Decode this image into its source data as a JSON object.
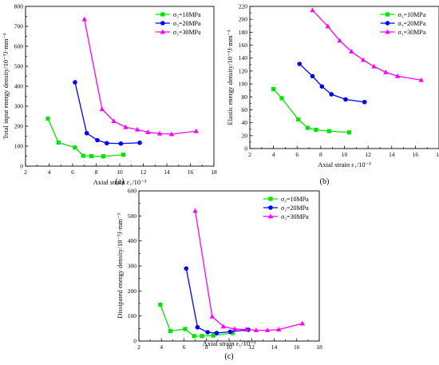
{
  "chart_data": [
    {
      "type": "line",
      "panel_label": "(a)",
      "ylabel": "Total input energy density/10⁻³J·mm⁻³",
      "xlabel": "Axial strain  ε₁/10⁻³",
      "xlim": [
        2,
        18
      ],
      "ylim": [
        0,
        800
      ],
      "xticks": [
        2,
        4,
        6,
        8,
        10,
        12,
        14,
        16,
        18
      ],
      "yticks": [
        0,
        100,
        200,
        300,
        400,
        500,
        600,
        700,
        800
      ],
      "xtick_labels": [
        "2",
        "4",
        "6",
        "8",
        "10",
        "12",
        "14",
        "16",
        "18"
      ],
      "ytick_labels": [
        "0",
        "100",
        "200",
        "300",
        "400",
        "500",
        "600",
        "700",
        "800"
      ],
      "legend_position": "top-right",
      "series": [
        {
          "name": "σ₃=10MPa",
          "color": "#00e600",
          "marker": "square",
          "x": [
            3.9,
            4.8,
            6.2,
            6.9,
            7.6,
            8.6,
            10.3
          ],
          "y": [
            238,
            118,
            93,
            52,
            50,
            49,
            57
          ]
        },
        {
          "name": "σ₃=20MPa",
          "color": "#0000ff",
          "marker": "circle",
          "x": [
            6.2,
            7.2,
            8.1,
            8.9,
            10.1,
            11.7
          ],
          "y": [
            420,
            165,
            130,
            115,
            113,
            117
          ]
        },
        {
          "name": "σ₃=30MPa",
          "color": "#ff00ff",
          "marker": "triangle",
          "x": [
            7.0,
            8.5,
            9.5,
            10.5,
            11.5,
            12.4,
            13.4,
            14.4,
            16.5
          ],
          "y": [
            735,
            285,
            225,
            195,
            183,
            170,
            163,
            160,
            175
          ]
        }
      ]
    },
    {
      "type": "line",
      "panel_label": "(b)",
      "ylabel": "Elastic energy density/10⁻³J·mm⁻³",
      "xlabel": "Axial strain  ε₁/10⁻³",
      "xlim": [
        2,
        18
      ],
      "ylim": [
        0,
        220
      ],
      "xticks": [
        2,
        4,
        6,
        8,
        10,
        12,
        14,
        16,
        18
      ],
      "yticks": [
        0,
        20,
        40,
        60,
        80,
        100,
        120,
        140,
        160,
        180,
        200,
        220
      ],
      "xtick_labels": [
        "2",
        "4",
        "6",
        "8",
        "10",
        "12",
        "14",
        "16",
        "18"
      ],
      "ytick_labels": [
        "0",
        "20",
        "40",
        "60",
        "80",
        "100",
        "120",
        "140",
        "160",
        "180",
        "200",
        "220"
      ],
      "legend_position": "top-right",
      "series": [
        {
          "name": "σ₃=10MPa",
          "color": "#00e600",
          "marker": "square",
          "x": [
            4.0,
            4.7,
            6.1,
            6.9,
            7.6,
            8.7,
            10.4
          ],
          "y": [
            92,
            78,
            45,
            32,
            29,
            27,
            25
          ]
        },
        {
          "name": "σ₃=20MPa",
          "color": "#0000ff",
          "marker": "circle",
          "x": [
            6.2,
            7.3,
            8.1,
            8.9,
            10.1,
            11.7
          ],
          "y": [
            131,
            112,
            96,
            84,
            76,
            72
          ]
        },
        {
          "name": "σ₃=30MPa",
          "color": "#ff00ff",
          "marker": "triangle",
          "x": [
            7.3,
            8.6,
            9.6,
            10.6,
            11.6,
            12.5,
            13.5,
            14.5,
            16.5
          ],
          "y": [
            214,
            189,
            167,
            150,
            137,
            127,
            118,
            112,
            106
          ]
        }
      ]
    },
    {
      "type": "line",
      "panel_label": "(c)",
      "ylabel": "Dissipated energy density/10⁻³J·mm⁻³",
      "xlabel": "Axial strain  ε₁/10⁻³",
      "xlim": [
        2,
        18
      ],
      "ylim": [
        0,
        600
      ],
      "xticks": [
        2,
        4,
        6,
        8,
        10,
        12,
        14,
        16,
        18
      ],
      "yticks": [
        0,
        100,
        200,
        300,
        400,
        500,
        600
      ],
      "xtick_labels": [
        "2",
        "4",
        "6",
        "8",
        "10",
        "12",
        "14",
        "16",
        "18"
      ],
      "ytick_labels": [
        "0",
        "100",
        "200",
        "300",
        "400",
        "500",
        "600"
      ],
      "legend_position": "top-right",
      "series": [
        {
          "name": "σ₃=10MPa",
          "color": "#00e600",
          "marker": "square",
          "x": [
            3.9,
            4.8,
            6.1,
            6.9,
            7.6,
            8.6,
            10.3
          ],
          "y": [
            145,
            40,
            48,
            20,
            20,
            22,
            32
          ]
        },
        {
          "name": "σ₃=20MPa",
          "color": "#0000ff",
          "marker": "circle",
          "x": [
            6.2,
            7.2,
            8.1,
            8.9,
            10.1,
            11.7
          ],
          "y": [
            290,
            55,
            35,
            32,
            37,
            45
          ]
        },
        {
          "name": "σ₃=30MPa",
          "color": "#ff00ff",
          "marker": "triangle",
          "x": [
            7.0,
            8.5,
            9.5,
            10.5,
            11.5,
            12.4,
            13.4,
            14.4,
            16.5
          ],
          "y": [
            520,
            98,
            58,
            48,
            46,
            43,
            43,
            46,
            70
          ]
        }
      ]
    }
  ]
}
